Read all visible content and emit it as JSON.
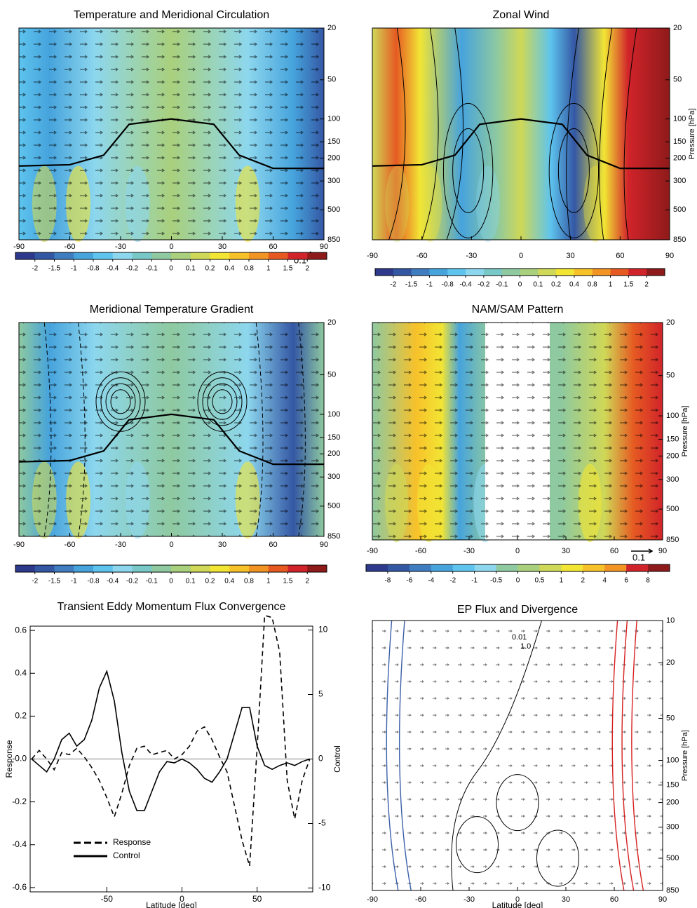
{
  "chart_data": [
    {
      "type": "contour",
      "title": "Temperature and Meridional Circulation",
      "xlim": [
        -90,
        90
      ],
      "xticks": [
        -90,
        -60,
        -30,
        0,
        30,
        60,
        90
      ],
      "ylim": [
        850,
        20
      ],
      "log_y": true,
      "yticks": [
        20,
        50,
        100,
        150,
        200,
        300,
        500,
        850
      ],
      "arrow_scale": "0.1",
      "colorbar": {
        "ticks": [
          -2,
          -1.5,
          -1,
          -0.8,
          -0.4,
          -0.2,
          -0.1,
          0,
          0.1,
          0.2,
          0.4,
          0.8,
          1,
          1.5,
          2
        ],
        "colors": [
          "#2d3a8c",
          "#3457a4",
          "#3f7cc0",
          "#46a3dc",
          "#5ec4ee",
          "#8dd7ee",
          "#79c8c8",
          "#8ec9a0",
          "#a9d07c",
          "#cfd857",
          "#f2e534",
          "#f7c12a",
          "#f19424",
          "#e65a22",
          "#d1242a",
          "#8e1a1a"
        ]
      }
    },
    {
      "type": "contour",
      "title": "Zonal Wind",
      "ylabel": "Pressure [hPa]",
      "xlim": [
        -90,
        90
      ],
      "xticks": [
        -90,
        -60,
        -30,
        0,
        30,
        60,
        90
      ],
      "ylim": [
        850,
        20
      ],
      "log_y": true,
      "yticks": [
        20,
        50,
        100,
        150,
        200,
        300,
        500,
        850
      ],
      "colorbar": {
        "ticks": [
          -2,
          -1.5,
          -1,
          -0.8,
          -0.4,
          -0.2,
          -0.1,
          0,
          0.1,
          0.2,
          0.4,
          0.8,
          1,
          1.5,
          2
        ],
        "colors": [
          "#2d3a8c",
          "#3457a4",
          "#3f7cc0",
          "#46a3dc",
          "#5ec4ee",
          "#8dd7ee",
          "#79c8c8",
          "#8ec9a0",
          "#a9d07c",
          "#cfd857",
          "#f2e534",
          "#f7c12a",
          "#f19424",
          "#e65a22",
          "#d1242a",
          "#8e1a1a"
        ]
      }
    },
    {
      "type": "contour",
      "title": "Meridional Temperature Gradient",
      "xlim": [
        -90,
        90
      ],
      "xticks": [
        -90,
        -60,
        -30,
        0,
        30,
        60,
        90
      ],
      "ylim": [
        850,
        20
      ],
      "log_y": true,
      "yticks": [
        20,
        50,
        100,
        150,
        200,
        300,
        500,
        850
      ],
      "colorbar": {
        "ticks": [
          -2,
          -1.5,
          -1,
          -0.8,
          -0.4,
          -0.2,
          -0.1,
          0,
          0.1,
          0.2,
          0.4,
          0.8,
          1,
          1.5,
          2
        ],
        "colors": [
          "#2d3a8c",
          "#3457a4",
          "#3f7cc0",
          "#46a3dc",
          "#5ec4ee",
          "#8dd7ee",
          "#79c8c8",
          "#8ec9a0",
          "#a9d07c",
          "#cfd857",
          "#f2e534",
          "#f7c12a",
          "#f19424",
          "#e65a22",
          "#d1242a",
          "#8e1a1a"
        ]
      }
    },
    {
      "type": "contour",
      "title": "NAM/SAM Pattern",
      "ylabel": "Pressure [hPa]",
      "xlim": [
        -90,
        90
      ],
      "xticks": [
        -90,
        -60,
        -30,
        0,
        30,
        60,
        90
      ],
      "ylim": [
        850,
        20
      ],
      "log_y": true,
      "yticks": [
        20,
        50,
        100,
        150,
        200,
        300,
        500,
        850
      ],
      "arrow_scale": "0.1",
      "colorbar": {
        "ticks": [
          -8,
          -6,
          -4,
          -2,
          -1,
          -0.5,
          0,
          0.5,
          1,
          2,
          4,
          6,
          8
        ],
        "colors": [
          "#2d3a8c",
          "#3457a4",
          "#3f7cc0",
          "#46a3dc",
          "#5ec4ee",
          "#8dd7ee",
          "#8ec9a0",
          "#a9d07c",
          "#cfd857",
          "#f2e534",
          "#f7c12a",
          "#f19424",
          "#d1242a",
          "#8e1a1a"
        ]
      }
    },
    {
      "type": "line",
      "title": "Transient Eddy Momentum Flux Convergence",
      "xlabel": "Latitude [deg]",
      "ylabel": "Response",
      "y2label": "Control",
      "xlim": [
        -101,
        87
      ],
      "xticks": [
        -50,
        0,
        50
      ],
      "ylim": [
        -0.62,
        0.62
      ],
      "yticks": [
        -0.6,
        -0.4,
        -0.2,
        {
          "value": 0,
          "label": "-0.0"
        },
        0.2,
        0.4,
        0.6
      ],
      "y2lim": [
        -10.3,
        10.3
      ],
      "y2ticks": [
        -10,
        -5,
        0,
        5,
        10
      ],
      "legend": "lower left",
      "x": [
        -100,
        -95,
        -90,
        -85,
        -80,
        -75,
        -70,
        -65,
        -60,
        -55,
        -50,
        -45,
        -40,
        -35,
        -30,
        -25,
        -20,
        -15,
        -10,
        -5,
        0,
        5,
        10,
        15,
        20,
        25,
        30,
        35,
        40,
        45,
        50,
        55,
        60,
        65,
        70,
        75,
        80,
        85
      ],
      "series": [
        {
          "name": "Response",
          "color": "#000000",
          "linestyle": "dashed",
          "values": [
            0.0,
            0.04,
            0.0,
            -0.05,
            0.03,
            0.02,
            0.05,
            0.01,
            -0.04,
            -0.1,
            -0.18,
            -0.27,
            -0.16,
            -0.03,
            0.05,
            0.06,
            0.02,
            0.03,
            0.04,
            0.0,
            0.02,
            0.06,
            0.13,
            0.15,
            0.09,
            0.01,
            -0.06,
            -0.22,
            -0.38,
            -0.5,
            0.05,
            0.67,
            0.66,
            0.5,
            -0.1,
            -0.28,
            -0.1,
            0.0
          ]
        },
        {
          "name": "Control",
          "color": "#000000",
          "linestyle": "solid",
          "axis": "y2",
          "values": [
            0,
            -0.5,
            -1.0,
            0.0,
            1.5,
            2.0,
            1.0,
            1.5,
            3.0,
            5.5,
            6.8,
            4.5,
            0.5,
            -2.5,
            -4.0,
            -4.0,
            -2.5,
            -1.0,
            -0.2,
            -0.3,
            0.0,
            -0.3,
            -0.8,
            -1.5,
            -1.8,
            -1.0,
            0.0,
            2.0,
            4.0,
            4.0,
            1.0,
            -0.5,
            -0.8,
            -0.5,
            -0.3,
            -0.5,
            -0.2,
            0.0
          ]
        }
      ]
    },
    {
      "type": "contour",
      "title": "EP Flux and Divergence",
      "xlabel": "Latitude [deg]",
      "ylabel": "Pressure [hPa]",
      "xlim": [
        -90,
        90
      ],
      "xticks": [
        -90,
        -60,
        -30,
        0,
        30,
        60,
        90
      ],
      "ylim": [
        850,
        10
      ],
      "log_y": true,
      "yticks": [
        10,
        20,
        50,
        100,
        150,
        200,
        300,
        500,
        850
      ],
      "annotations": [
        "0.01",
        "1.0"
      ]
    }
  ]
}
